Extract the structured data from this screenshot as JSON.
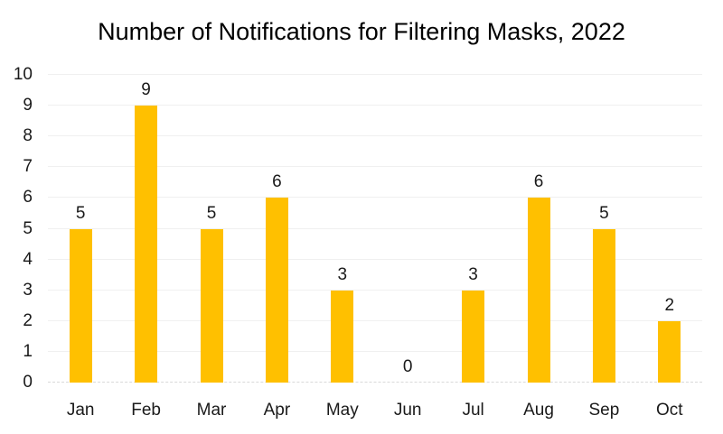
{
  "chart_data": {
    "type": "bar",
    "title": "Number of Notifications for Filtering Masks, 2022",
    "categories": [
      "Jan",
      "Feb",
      "Mar",
      "Apr",
      "May",
      "Jun",
      "Jul",
      "Aug",
      "Sep",
      "Oct"
    ],
    "values": [
      5,
      9,
      5,
      6,
      3,
      0,
      3,
      6,
      5,
      2
    ],
    "xlabel": "",
    "ylabel": "",
    "ylim": [
      0,
      10
    ],
    "yticks": [
      0,
      1,
      2,
      3,
      4,
      5,
      6,
      7,
      8,
      9,
      10
    ],
    "data_labels": true,
    "grid": true,
    "legend": "none",
    "colors": {
      "bar": "#FFC000",
      "title_text": "#000000",
      "axis_text": "#1A1A1A",
      "gridline": "#F0F0F0",
      "axis_line": "#D9D9D9",
      "background": "#FFFFFF"
    }
  }
}
